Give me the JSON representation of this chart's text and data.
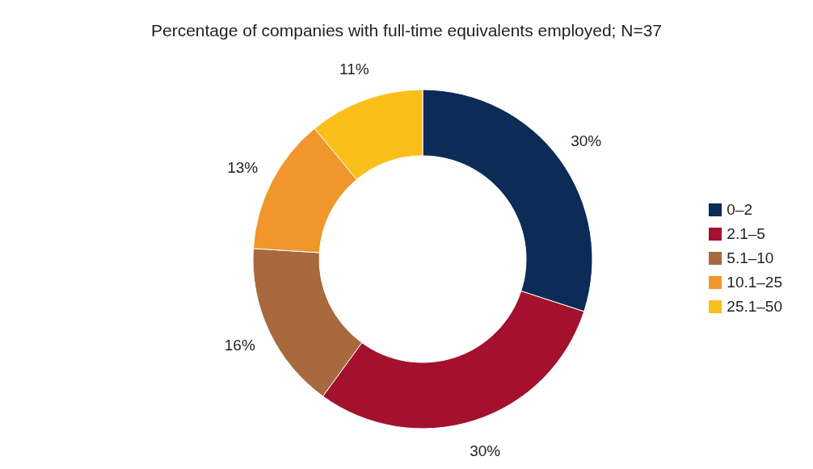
{
  "chart_data": {
    "type": "donut",
    "title": "Percentage of companies with full-time equivalents employed; N=37",
    "categories": [
      "0–2",
      "2.1–5",
      "5.1–10",
      "10.1–25",
      "25.1–50"
    ],
    "values": [
      30,
      30,
      16,
      13,
      11
    ],
    "value_labels": [
      "30%",
      "30%",
      "16%",
      "13%",
      "11%"
    ],
    "colors": [
      "#0d2b57",
      "#a3112e",
      "#a8693e",
      "#f0962a",
      "#fbbf1c"
    ],
    "legend": "right"
  }
}
